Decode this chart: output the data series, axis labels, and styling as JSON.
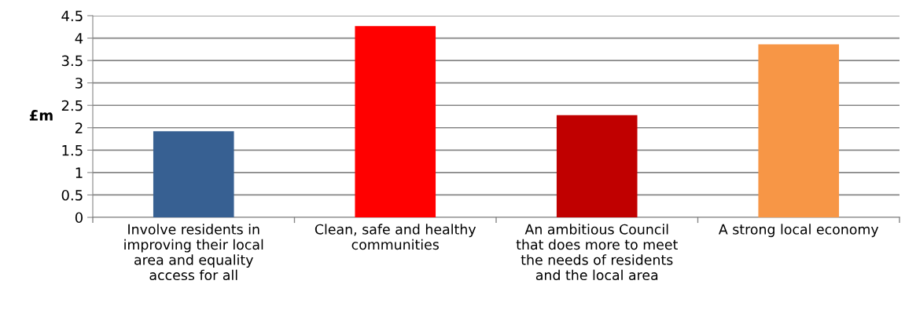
{
  "chart_data": {
    "type": "bar",
    "ylabel": "£m",
    "categories": [
      "Involve residents in\nimproving their local\narea and equality\naccess for all",
      "Clean, safe and healthy\ncommunities",
      "An ambitious Council\nthat does more to meet\nthe needs of residents\nand the local area",
      "A strong local economy"
    ],
    "values": [
      1.92,
      4.27,
      2.28,
      3.86
    ],
    "colors": [
      "#376092",
      "#ff0000",
      "#c00000",
      "#f79646"
    ],
    "ylim": [
      0,
      4.5
    ],
    "yticks": [
      0,
      0.5,
      1,
      1.5,
      2,
      2.5,
      3,
      3.5,
      4,
      4.5
    ],
    "grid": "y"
  }
}
